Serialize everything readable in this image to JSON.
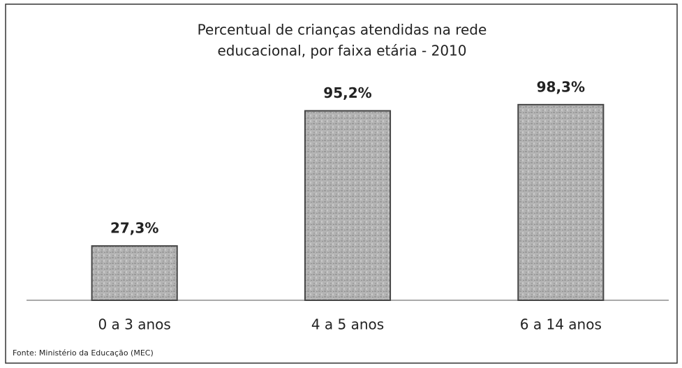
{
  "chart_data": {
    "type": "bar",
    "title": [
      "Percentual de crianças atendidas na rede",
      "educacional, por faixa etária - 2010"
    ],
    "categories": [
      "0 a 3 anos",
      "4 a 5 anos",
      "6 a 14 anos"
    ],
    "values": [
      27.3,
      95.2,
      98.3
    ],
    "value_labels": [
      "27,3%",
      "95,2%",
      "98,3%"
    ],
    "color": "#a9a9a9",
    "ylim": [
      0,
      100
    ],
    "source": "Fonte: Ministério da Educação (MEC)"
  }
}
